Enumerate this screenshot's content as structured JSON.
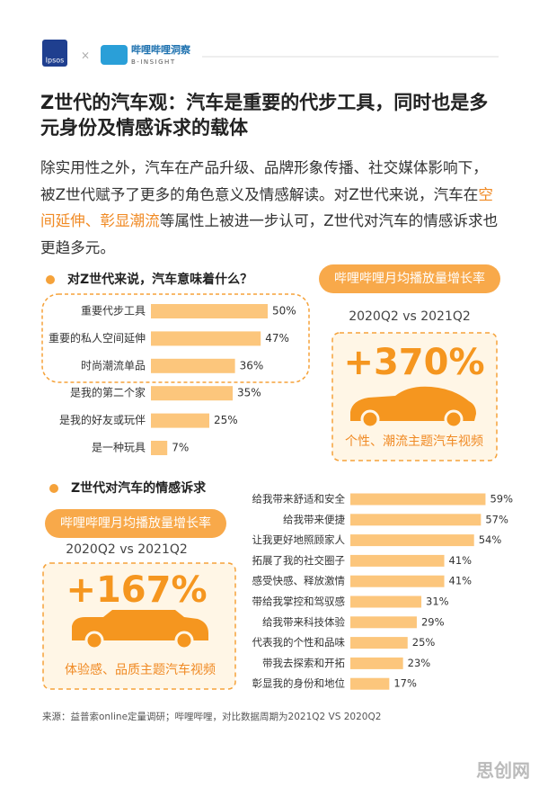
{
  "header": {
    "logo_left": "Ipsos",
    "separator": "×",
    "logo_right_cn": "哔哩哔哩洞察",
    "logo_right_en": "B-INSIGHT"
  },
  "title": "Z世代的汽车观：汽车是重要的代步工具，同时也是多元身份及情感诉求的载体",
  "intro": {
    "before": "除实用性之外，汽车在产品升级、品牌形象传播、社交媒体影响下，被Z世代赋予了更多的角色意义及情感解读。对Z世代来说，汽车在",
    "highlight": "空间延伸、彰显潮流",
    "after": "等属性上被进一步认可，Z世代对汽车的情感诉求也更趋多元。"
  },
  "chart_data": [
    {
      "type": "bar",
      "title": "对Z世代来说，汽车意味着什么？",
      "categories": [
        "重要代步工具",
        "重要的私人空间延伸",
        "时尚潮流单品",
        "是我的第二个家",
        "是我的好友或玩伴",
        "是一种玩具"
      ],
      "values": [
        50,
        47,
        36,
        35,
        25,
        7
      ],
      "value_labels": [
        "50%",
        "47%",
        "36%",
        "35%",
        "25%",
        "7%"
      ],
      "color": "#fcc67c"
    },
    {
      "type": "bar",
      "title": "Z世代对汽车的情感诉求",
      "categories": [
        "给我带来舒适和安全",
        "给我带来便捷",
        "让我更好地照顾家人",
        "拓展了我的社交圈子",
        "感受快感、释放激情",
        "带给我掌控和驾驭感",
        "给我带来科技体验",
        "代表我的个性和品味",
        "带我去探索和开拓",
        "彰显我的身份和地位"
      ],
      "values": [
        59,
        57,
        54,
        41,
        41,
        31,
        29,
        25,
        23,
        17
      ],
      "value_labels": [
        "59%",
        "57%",
        "54%",
        "41%",
        "41%",
        "31%",
        "29%",
        "25%",
        "23%",
        "17%"
      ],
      "color": "#fcc67c"
    }
  ],
  "callouts": [
    {
      "badge": "哔哩哔哩月均播放量增长率",
      "period": "2020Q2 vs 2021Q2",
      "value": "+370%",
      "caption": "个性、潮流主题汽车视频"
    },
    {
      "badge": "哔哩哔哩月均播放量增长率",
      "period": "2020Q2 vs 2021Q2",
      "value": "+167%",
      "caption": "体验感、品质主题汽车视频"
    }
  ],
  "source": "来源：益普索online定量调研；哔哩哔哩，对比数据周期为2021Q2 VS 2020Q2",
  "watermark": "思创网"
}
